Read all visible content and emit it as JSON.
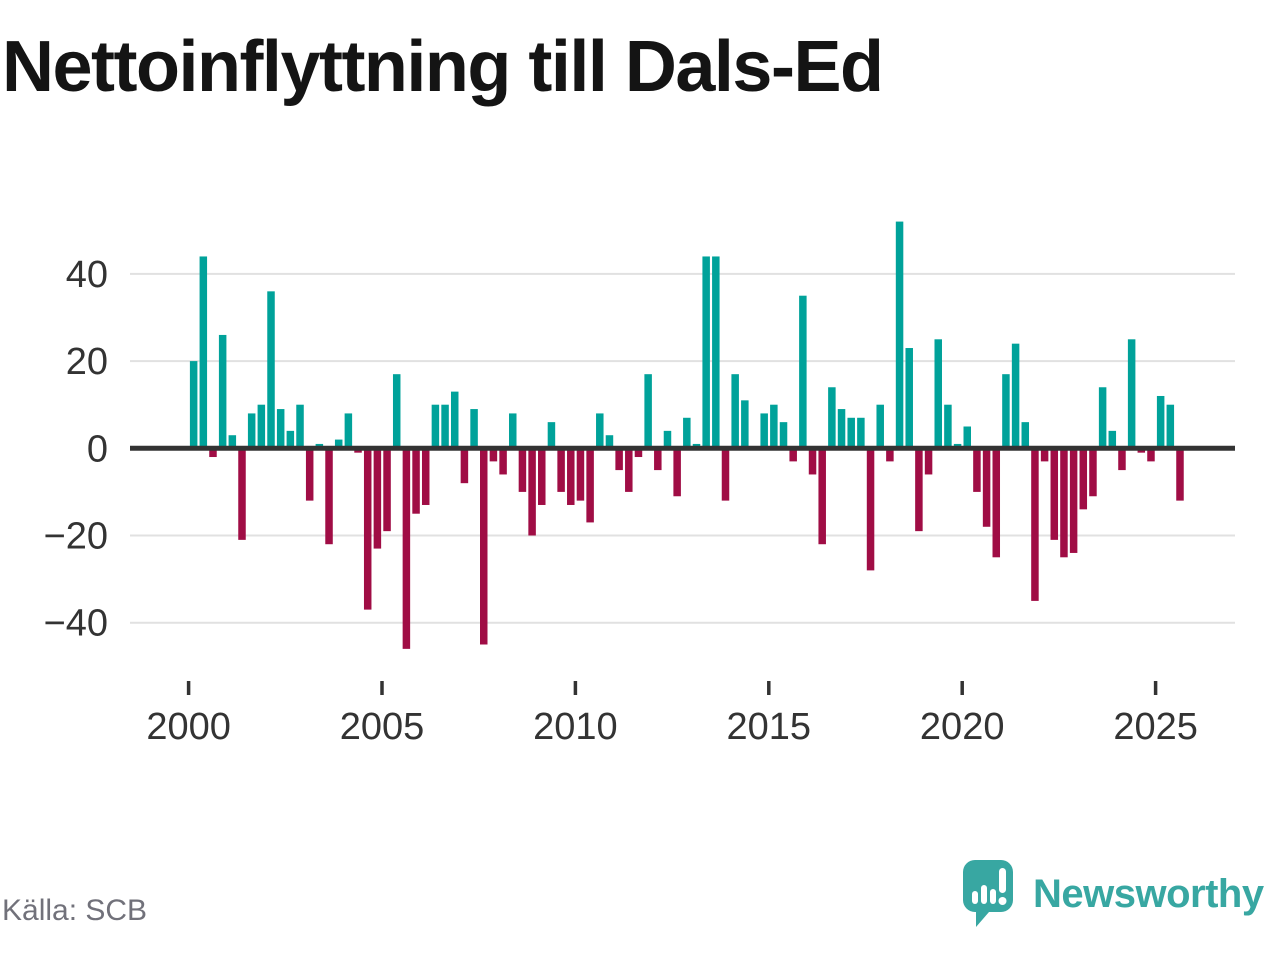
{
  "header": {
    "title": "Nettoinflyttning till Dals-Ed"
  },
  "footer": {
    "source": "Källa: SCB",
    "brand": "Newsworthy"
  },
  "colors": {
    "positive_bar": "#00a29a",
    "negative_bar": "#a00d45",
    "axis_line": "#333333",
    "gridline": "#e1e1e1",
    "tick_text": "#333333",
    "title_text": "#141414",
    "muted_text": "#71717a",
    "brand_teal": "#38a7a2"
  },
  "chart_data": {
    "type": "bar",
    "title": "Nettoinflyttning till Dals-Ed",
    "x_unit": "quarter",
    "start_quarter": "2000-Q1",
    "end_quarter": "2025-Q3",
    "values": [
      20,
      44,
      -2,
      26,
      3,
      -21,
      8,
      10,
      36,
      9,
      4,
      10,
      -12,
      1,
      -22,
      2,
      8,
      -1,
      -37,
      -23,
      -19,
      17,
      -46,
      -15,
      -13,
      10,
      10,
      13,
      -8,
      9,
      -45,
      -3,
      -6,
      8,
      -10,
      -20,
      -13,
      6,
      -10,
      -13,
      -12,
      -17,
      8,
      3,
      -5,
      -10,
      -2,
      17,
      -5,
      4,
      -11,
      7,
      1,
      44,
      44,
      -12,
      17,
      11,
      0,
      8,
      10,
      6,
      -3,
      35,
      -6,
      -22,
      14,
      9,
      7,
      7,
      -28,
      10,
      -3,
      52,
      23,
      -19,
      -6,
      25,
      10,
      1,
      5,
      -10,
      -18,
      -25,
      17,
      24,
      6,
      -35,
      -3,
      -21,
      -25,
      -24,
      -14,
      -11,
      14,
      4,
      -5,
      25,
      -1,
      -3,
      12,
      10,
      -12
    ],
    "x_tick_years": [
      2000,
      2005,
      2010,
      2015,
      2020,
      2025
    ],
    "x_tick_labels": [
      "2000",
      "2005",
      "2010",
      "2015",
      "2020",
      "2025"
    ],
    "y_ticks": [
      40,
      20,
      0,
      -20,
      -40
    ],
    "y_tick_labels": [
      "40",
      "20",
      "0",
      "−20",
      "−40"
    ],
    "grid": true,
    "legend": false
  }
}
